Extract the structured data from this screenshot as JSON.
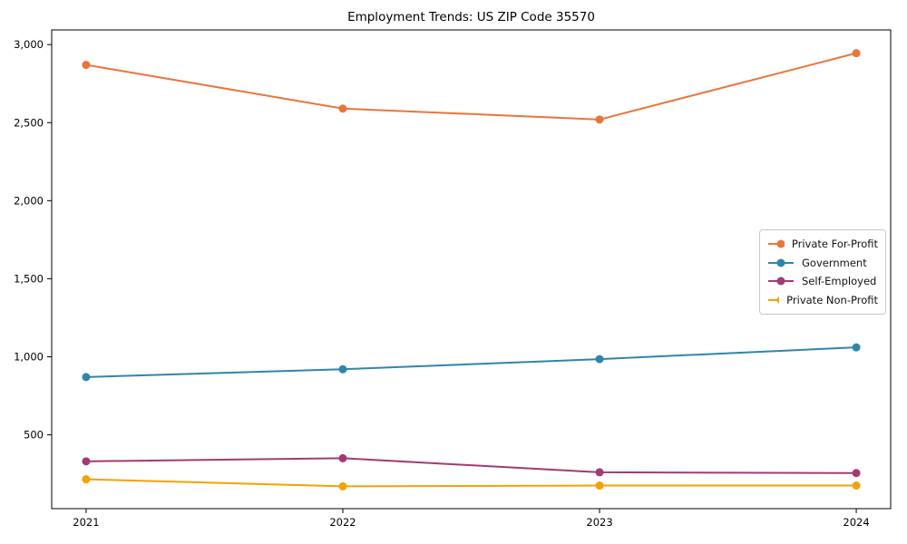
{
  "chart_data": {
    "type": "line",
    "title": "Employment Trends: US ZIP Code 35570",
    "xlabel": "",
    "ylabel": "",
    "grid": false,
    "legend_position": "center right",
    "x": [
      2021,
      2022,
      2023,
      2024
    ],
    "x_tick_labels": [
      "2021",
      "2022",
      "2023",
      "2024"
    ],
    "xlim": [
      2020.866,
      2024.134
    ],
    "y_ticks": [
      500,
      1000,
      1500,
      2000,
      2500,
      3000
    ],
    "y_tick_labels": [
      "500",
      "1,000",
      "1,500",
      "2,000",
      "2,500",
      "3,000"
    ],
    "ylim": [
      27,
      3094
    ],
    "series": [
      {
        "name": "Private For-Profit",
        "color": "#E8763C",
        "values": [
          2870,
          2590,
          2520,
          2945
        ]
      },
      {
        "name": "Government",
        "color": "#2E86AB",
        "values": [
          870,
          920,
          985,
          1060
        ]
      },
      {
        "name": "Self-Employed",
        "color": "#A23B72",
        "values": [
          330,
          350,
          260,
          255
        ]
      },
      {
        "name": "Private Non-Profit",
        "color": "#F5A104",
        "values": [
          215,
          170,
          175,
          175
        ]
      }
    ],
    "axis_color": "#000000",
    "background_color": "#ffffff"
  }
}
